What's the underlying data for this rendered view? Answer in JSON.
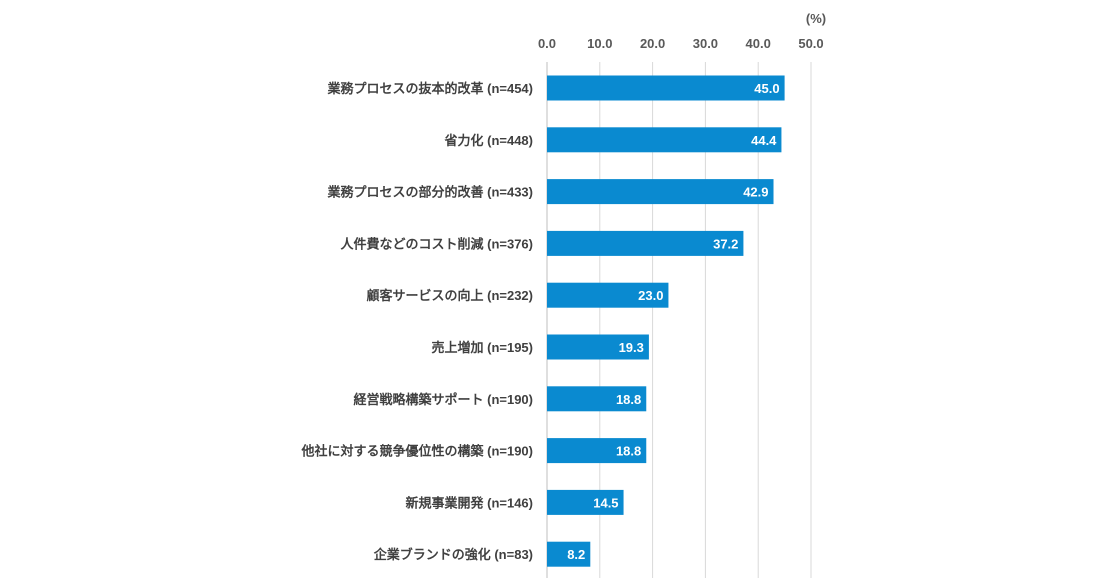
{
  "chart_data": {
    "type": "bar",
    "orientation": "horizontal",
    "unit_label": "(%)",
    "xlim": [
      0,
      50
    ],
    "ticks": [
      "0.0",
      "10.0",
      "20.0",
      "30.0",
      "40.0",
      "50.0"
    ],
    "grid": true,
    "bar_color": "#0a8ad0",
    "categories": [
      "業務プロセスの抜本的改革 (n=454)",
      "省力化 (n=448)",
      "業務プロセスの部分的改善 (n=433)",
      "人件費などのコスト削減 (n=376)",
      "顧客サービスの向上 (n=232)",
      "売上増加 (n=195)",
      "経営戦略構築サポート (n=190)",
      "他社に対する競争優位性の構築 (n=190)",
      "新規事業開発 (n=146)",
      "企業ブランドの強化 (n=83)"
    ],
    "values": [
      45.0,
      44.4,
      42.9,
      37.2,
      23.0,
      19.3,
      18.8,
      18.8,
      14.5,
      8.2
    ],
    "value_labels": [
      "45.0",
      "44.4",
      "42.9",
      "37.2",
      "23.0",
      "19.3",
      "18.8",
      "18.8",
      "14.5",
      "8.2"
    ]
  }
}
